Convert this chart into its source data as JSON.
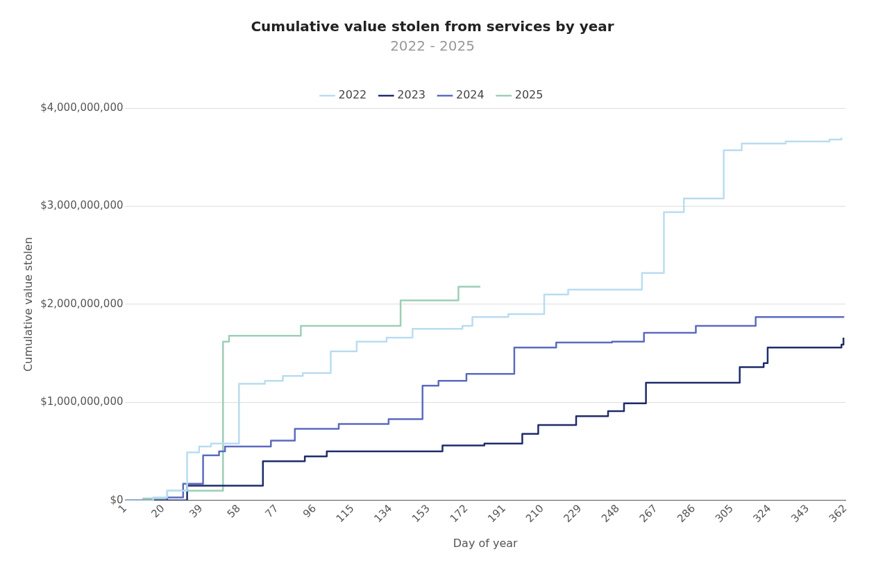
{
  "chart_data": {
    "type": "step",
    "title": "Cumulative value stolen from services by year",
    "subtitle": "2022 - 2025",
    "xlabel": "Day of year",
    "ylabel": "Cumulative value stolen",
    "xlim": [
      1,
      362
    ],
    "xticks": [
      1,
      20,
      39,
      58,
      77,
      96,
      115,
      134,
      153,
      172,
      191,
      210,
      229,
      248,
      267,
      286,
      305,
      324,
      343,
      362
    ],
    "ylim": [
      0,
      4000000000
    ],
    "yticks": [
      {
        "value": 0,
        "label": "$0"
      },
      {
        "value": 1000000000,
        "label": "$1,000,000,000"
      },
      {
        "value": 2000000000,
        "label": "$2,000,000,000"
      },
      {
        "value": 3000000000,
        "label": "$3,000,000,000"
      },
      {
        "value": 4000000000,
        "label": "$4,000,000,000"
      }
    ],
    "grid": "y",
    "legend": "top",
    "marker": "none",
    "series": [
      {
        "name": "2022",
        "color": "#b9dcf0",
        "x": [
          1,
          15,
          22,
          32,
          38,
          44,
          58,
          71,
          80,
          90,
          104,
          117,
          132,
          145,
          170,
          175,
          193,
          211,
          223,
          260,
          271,
          281,
          301,
          310,
          332,
          354,
          360
        ],
        "values": [
          0,
          30000000,
          100000000,
          490000000,
          550000000,
          580000000,
          1190000000,
          1220000000,
          1270000000,
          1300000000,
          1520000000,
          1620000000,
          1660000000,
          1750000000,
          1780000000,
          1870000000,
          1900000000,
          2100000000,
          2150000000,
          2320000000,
          2940000000,
          3080000000,
          3570000000,
          3640000000,
          3660000000,
          3680000000,
          3700000000
        ]
      },
      {
        "name": "2023",
        "color": "#1f2a6b",
        "x": [
          1,
          32,
          70,
          91,
          102,
          160,
          181,
          200,
          208,
          227,
          243,
          251,
          262,
          309,
          321,
          323,
          360,
          361
        ],
        "values": [
          0,
          150000000,
          400000000,
          450000000,
          500000000,
          560000000,
          580000000,
          680000000,
          770000000,
          860000000,
          910000000,
          990000000,
          1200000000,
          1360000000,
          1400000000,
          1560000000,
          1590000000,
          1660000000
        ]
      },
      {
        "name": "2024",
        "color": "#5b6ac0",
        "x": [
          1,
          22,
          30,
          40,
          48,
          51,
          74,
          86,
          108,
          133,
          150,
          158,
          172,
          196,
          217,
          245,
          261,
          287,
          317,
          361
        ],
        "values": [
          0,
          30000000,
          170000000,
          460000000,
          500000000,
          550000000,
          610000000,
          730000000,
          780000000,
          830000000,
          1170000000,
          1220000000,
          1290000000,
          1560000000,
          1610000000,
          1620000000,
          1710000000,
          1780000000,
          1870000000,
          1880000000
        ]
      },
      {
        "name": "2025",
        "color": "#9ccfb6",
        "x": [
          1,
          10,
          22,
          50,
          53,
          89,
          139,
          168,
          179
        ],
        "values": [
          0,
          20000000,
          100000000,
          1620000000,
          1680000000,
          1780000000,
          2040000000,
          2180000000,
          2180000000
        ]
      }
    ]
  }
}
